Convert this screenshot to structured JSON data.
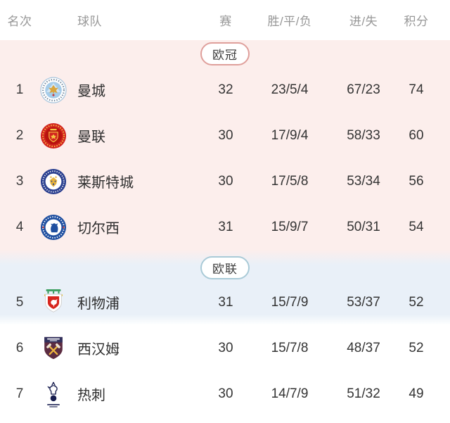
{
  "colors": {
    "champions_bg": "#fceeec",
    "europa_bg": "#e9f0f8",
    "champions_badge_border": "#df9f9b",
    "europa_badge_border": "#a9cad7",
    "header_text": "#979797",
    "row_text": "#343434",
    "page_bg": "#ffffff"
  },
  "table": {
    "columns": [
      {
        "key": "rank",
        "label": "名次"
      },
      {
        "key": "team",
        "label": "球队"
      },
      {
        "key": "played",
        "label": "赛"
      },
      {
        "key": "wdl",
        "label": "胜/平/负"
      },
      {
        "key": "gfga",
        "label": "进/失"
      },
      {
        "key": "points",
        "label": "积分"
      }
    ],
    "sections": [
      {
        "id": "champions-league",
        "badge_label": "欧冠",
        "theme": {
          "bg": "#fceeec",
          "badge_border": "#df9f9b"
        },
        "rows": [
          {
            "rank": "1",
            "team": "曼城",
            "logo": "man-city-badge",
            "played": "32",
            "wdl": "23/5/4",
            "gfga": "67/23",
            "points": "74"
          },
          {
            "rank": "2",
            "team": "曼联",
            "logo": "man-united-badge",
            "played": "30",
            "wdl": "17/9/4",
            "gfga": "58/33",
            "points": "60"
          },
          {
            "rank": "3",
            "team": "莱斯特城",
            "logo": "leicester-city-badge",
            "played": "30",
            "wdl": "17/5/8",
            "gfga": "53/34",
            "points": "56"
          },
          {
            "rank": "4",
            "team": "切尔西",
            "logo": "chelsea-badge",
            "played": "31",
            "wdl": "15/9/7",
            "gfga": "50/31",
            "points": "54"
          }
        ]
      },
      {
        "id": "europa-league",
        "badge_label": "欧联",
        "theme": {
          "bg": "#e9f0f8",
          "badge_border": "#a9cad7"
        },
        "rows": [
          {
            "rank": "5",
            "team": "利物浦",
            "logo": "liverpool-badge",
            "played": "31",
            "wdl": "15/7/9",
            "gfga": "53/37",
            "points": "52"
          }
        ]
      },
      {
        "id": "rest",
        "badge_label": null,
        "theme": {
          "bg": "#ffffff"
        },
        "rows": [
          {
            "rank": "6",
            "team": "西汉姆",
            "logo": "west-ham-badge",
            "played": "30",
            "wdl": "15/7/8",
            "gfga": "48/37",
            "points": "52"
          },
          {
            "rank": "7",
            "team": "热刺",
            "logo": "tottenham-badge",
            "played": "30",
            "wdl": "14/7/9",
            "gfga": "51/32",
            "points": "49"
          }
        ]
      }
    ]
  }
}
